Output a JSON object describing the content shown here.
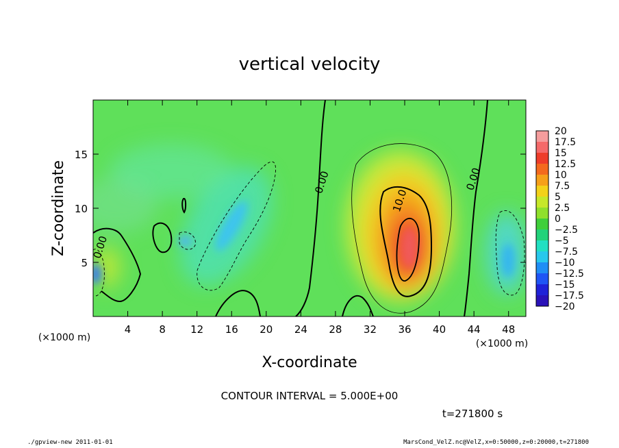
{
  "chart_data": {
    "type": "heatmap",
    "title": "vertical velocity",
    "xlabel": "X-coordinate",
    "ylabel": "Z-coordinate",
    "x_unit": "(×1000 m)",
    "z_unit": "(×1000 m)",
    "xlim": [
      0,
      50
    ],
    "ylim": [
      0,
      20
    ],
    "x_ticks": [
      4,
      8,
      12,
      16,
      20,
      24,
      28,
      32,
      36,
      40,
      44,
      48
    ],
    "y_ticks": [
      5,
      10,
      15
    ],
    "contour_interval_text": "CONTOUR INTERVAL = 5.000E+00",
    "time_text": "t=271800 s",
    "contour_labels": [
      {
        "text": "0.00",
        "x": 26.8,
        "z": 12.3
      },
      {
        "text": "10.0",
        "x": 35.8,
        "z": 10.6
      },
      {
        "text": "0.00",
        "x": 44.3,
        "z": 12.6
      },
      {
        "text": "0.00",
        "x": 1.2,
        "z": 6.3
      }
    ],
    "colorbar": {
      "levels": [
        "20",
        "17.5",
        "15",
        "12.5",
        "10",
        "7.5",
        "5",
        "2.5",
        "0",
        "−2.5",
        "−5",
        "−7.5",
        "−10",
        "−12.5",
        "−15",
        "−17.5",
        "−20"
      ],
      "colors": [
        "#f59d9d",
        "#f56a6a",
        "#ee3d2a",
        "#f46a1e",
        "#f6a01a",
        "#f3d21a",
        "#c6e82a",
        "#8fe02c",
        "#3fcf3a",
        "#22d27a",
        "#22e0c2",
        "#28c8ec",
        "#1f8ef5",
        "#1f55f5",
        "#1f22d8",
        "#2a12b8",
        "#6a12b0"
      ]
    },
    "features": [
      {
        "type": "updraft",
        "x": 36.2,
        "z": 6.5,
        "w": 17.5
      },
      {
        "type": "downdraft",
        "x": 17.5,
        "z": 7.5,
        "w": -6.5
      },
      {
        "type": "downdraft",
        "x": 47.5,
        "z": 5.5,
        "w": -7.5
      },
      {
        "type": "downdraft",
        "x": 0.3,
        "z": 4.0,
        "w": -11
      },
      {
        "type": "updraft",
        "x": 1.8,
        "z": 4.5,
        "w": 5
      }
    ]
  },
  "footer": {
    "left": "./gpview-new  2011-01-01",
    "right": "MarsCond_VelZ.nc@VelZ,x=0:50000,z=0:20000,t=271800"
  }
}
